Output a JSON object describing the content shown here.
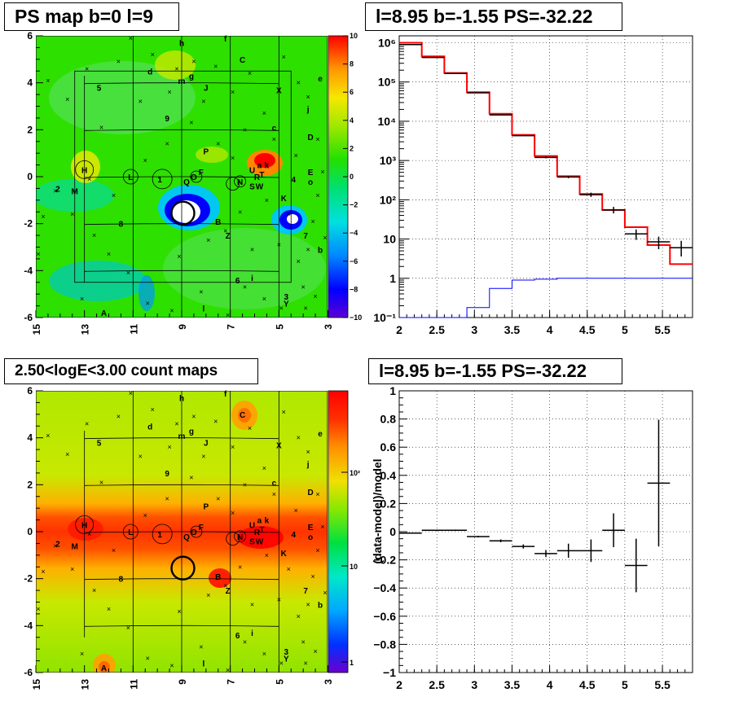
{
  "titles": {
    "map": "PS map b=0 l=9",
    "spectrum": "l=8.95 b=-1.55 PS=-32.22",
    "counts": "2.50<logE<3.00 count maps",
    "residual": "l=8.95 b=-1.55 PS=-32.22"
  },
  "maps": {
    "x_ticks": [
      "15",
      "13",
      "11",
      "9",
      "7",
      "5",
      "3"
    ],
    "y_ticks": [
      "6",
      "4",
      "2",
      "0",
      "-2",
      "-4",
      "-6"
    ],
    "ps_colorbar_ticks": [
      "10",
      "8",
      "6",
      "4",
      "2",
      "0",
      "−2",
      "−4",
      "−6",
      "−8",
      "−10"
    ],
    "count_colorbar_ticks": [
      "10²",
      "10",
      "1"
    ],
    "source_labels": [
      {
        "t": "h",
        "l": 9,
        "b": 5.7
      },
      {
        "t": "f",
        "l": 7.2,
        "b": 5.9
      },
      {
        "t": "d",
        "l": 10.3,
        "b": 4.5
      },
      {
        "t": "g",
        "l": 8.6,
        "b": 4.3
      },
      {
        "t": "C",
        "l": 6.5,
        "b": 5
      },
      {
        "t": "m",
        "l": 9,
        "b": 4.1
      },
      {
        "t": "e",
        "l": 3.3,
        "b": 4.2
      },
      {
        "t": "5",
        "l": 12.4,
        "b": 3.8
      },
      {
        "t": "J",
        "l": 8,
        "b": 3.8
      },
      {
        "t": "X",
        "l": 5,
        "b": 3.7
      },
      {
        "t": "j",
        "l": 3.8,
        "b": 2.9
      },
      {
        "t": "9",
        "l": 9.6,
        "b": 2.5
      },
      {
        "t": "c",
        "l": 5.2,
        "b": 2.1
      },
      {
        "t": "D",
        "l": 3.7,
        "b": 1.7
      },
      {
        "t": "P",
        "l": 8,
        "b": 1.1
      },
      {
        "t": "H",
        "l": 13,
        "b": 0.3
      },
      {
        "t": "L",
        "l": 11.1,
        "b": 0
      },
      {
        "t": "1",
        "l": 9.9,
        "b": -0.1
      },
      {
        "t": "Q",
        "l": 8.8,
        "b": -0.2
      },
      {
        "t": "O",
        "l": 8.5,
        "b": 0
      },
      {
        "t": "F",
        "l": 8.2,
        "b": 0.2
      },
      {
        "t": "N",
        "l": 6.6,
        "b": -0.2
      },
      {
        "t": "U",
        "l": 6.1,
        "b": 0.3
      },
      {
        "t": "a",
        "l": 5.8,
        "b": 0.5
      },
      {
        "t": "k",
        "l": 5.5,
        "b": 0.5
      },
      {
        "t": "R",
        "l": 5.9,
        "b": 0
      },
      {
        "t": "T",
        "l": 5.7,
        "b": 0.1
      },
      {
        "t": "S",
        "l": 6.1,
        "b": -0.4
      },
      {
        "t": "W",
        "l": 5.8,
        "b": -0.4
      },
      {
        "t": "4",
        "l": 4.4,
        "b": -0.1
      },
      {
        "t": "E",
        "l": 3.7,
        "b": 0.2
      },
      {
        "t": "o",
        "l": 3.7,
        "b": -0.2
      },
      {
        "t": "2",
        "l": 14.1,
        "b": -0.5
      },
      {
        "t": "M",
        "l": 13.4,
        "b": -0.6
      },
      {
        "t": "K",
        "l": 4.8,
        "b": -0.9
      },
      {
        "t": "8",
        "l": 11.5,
        "b": -2
      },
      {
        "t": "B",
        "l": 7.5,
        "b": -1.9
      },
      {
        "t": "Z",
        "l": 7.1,
        "b": -2.5
      },
      {
        "t": "7",
        "l": 3.9,
        "b": -2.5
      },
      {
        "t": "b",
        "l": 3.3,
        "b": -3.1
      },
      {
        "t": "i",
        "l": 6.1,
        "b": -4.3
      },
      {
        "t": "6",
        "l": 6.7,
        "b": -4.4
      },
      {
        "t": "3",
        "l": 4.7,
        "b": -5.1
      },
      {
        "t": "Y",
        "l": 4.7,
        "b": -5.4
      },
      {
        "t": "l",
        "l": 8.1,
        "b": -5.6
      },
      {
        "t": "A",
        "l": 12.2,
        "b": -5.8
      }
    ]
  },
  "chart_data": [
    {
      "type": "line",
      "title": "l=8.95 b=-1.55 PS=-32.22",
      "xlabel": "",
      "ylabel": "",
      "xlim": [
        2,
        5.9
      ],
      "ylim": [
        0.1,
        1500000
      ],
      "y_scale": "log",
      "grid": true,
      "x_ticks": [
        "2",
        "2.5",
        "3",
        "3.5",
        "4",
        "4.5",
        "5",
        "5.5"
      ],
      "y_ticks": [
        "10⁻¹",
        "1",
        "10",
        "10²",
        "10³",
        "10⁴",
        "10⁵",
        "10⁶"
      ],
      "bin_edges": [
        2.0,
        2.3,
        2.6,
        2.9,
        3.2,
        3.5,
        3.8,
        4.1,
        4.4,
        4.7,
        5.0,
        5.3,
        5.6,
        5.9
      ],
      "series": [
        {
          "color": "#ff0000",
          "values": [
            1000000,
            450000,
            170000,
            55000,
            15500,
            4500,
            1300,
            400,
            140,
            55,
            20,
            7,
            2.3
          ]
        },
        {
          "color": "#0000ff",
          "values": [
            0.1,
            0.1,
            0.1,
            0.18,
            0.55,
            0.9,
            0.95,
            1,
            1,
            1,
            1,
            1,
            1
          ]
        },
        {
          "color": "#000000",
          "values": [
            900000,
            420000,
            165000,
            53000,
            14500,
            4300,
            1200,
            380,
            135,
            55,
            13.5,
            8.5,
            6
          ],
          "err_low": [
            890000,
            418000,
            164000,
            52500,
            14300,
            4200,
            1140,
            355,
            118,
            45,
            9.5,
            5.5,
            3.6
          ],
          "err_high": [
            910000,
            422000,
            166000,
            53500,
            14700,
            4400,
            1260,
            405,
            152,
            66,
            17.5,
            11.5,
            9
          ]
        }
      ]
    },
    {
      "type": "scatter",
      "title": "l=8.95 b=-1.55 PS=-32.22",
      "xlabel": "",
      "ylabel": "(data-model)/model",
      "xlim": [
        2,
        5.9
      ],
      "ylim": [
        -1,
        1
      ],
      "grid": true,
      "x_ticks": [
        "2",
        "2.5",
        "3",
        "3.5",
        "4",
        "4.5",
        "5",
        "5.5"
      ],
      "y_ticks": [
        "1",
        "0.8",
        "0.6",
        "0.4",
        "0.2",
        "0",
        "−0.2",
        "−0.4",
        "−0.6",
        "−0.8",
        "−1"
      ],
      "points": [
        {
          "x": 2.15,
          "y": -0.01,
          "xerr": 0.15,
          "yerr": 0.004
        },
        {
          "x": 2.45,
          "y": 0.01,
          "xerr": 0.15,
          "yerr": 0.004
        },
        {
          "x": 2.75,
          "y": 0.01,
          "xerr": 0.15,
          "yerr": 0.005
        },
        {
          "x": 3.05,
          "y": -0.035,
          "xerr": 0.15,
          "yerr": 0.006
        },
        {
          "x": 3.35,
          "y": -0.065,
          "xerr": 0.15,
          "yerr": 0.01
        },
        {
          "x": 3.65,
          "y": -0.105,
          "xerr": 0.15,
          "yerr": 0.015
        },
        {
          "x": 3.95,
          "y": -0.155,
          "xerr": 0.15,
          "yerr": 0.025
        },
        {
          "x": 4.25,
          "y": -0.135,
          "xerr": 0.15,
          "yerr": 0.05
        },
        {
          "x": 4.55,
          "y": -0.135,
          "xerr": 0.15,
          "yerr": 0.08
        },
        {
          "x": 4.85,
          "y": 0.01,
          "xerr": 0.15,
          "yerr": 0.12
        },
        {
          "x": 5.15,
          "y": -0.24,
          "xerr": 0.15,
          "yerr": 0.19
        },
        {
          "x": 5.45,
          "y": 0.345,
          "xerr": 0.15,
          "yerr": 0.45
        }
      ]
    }
  ]
}
